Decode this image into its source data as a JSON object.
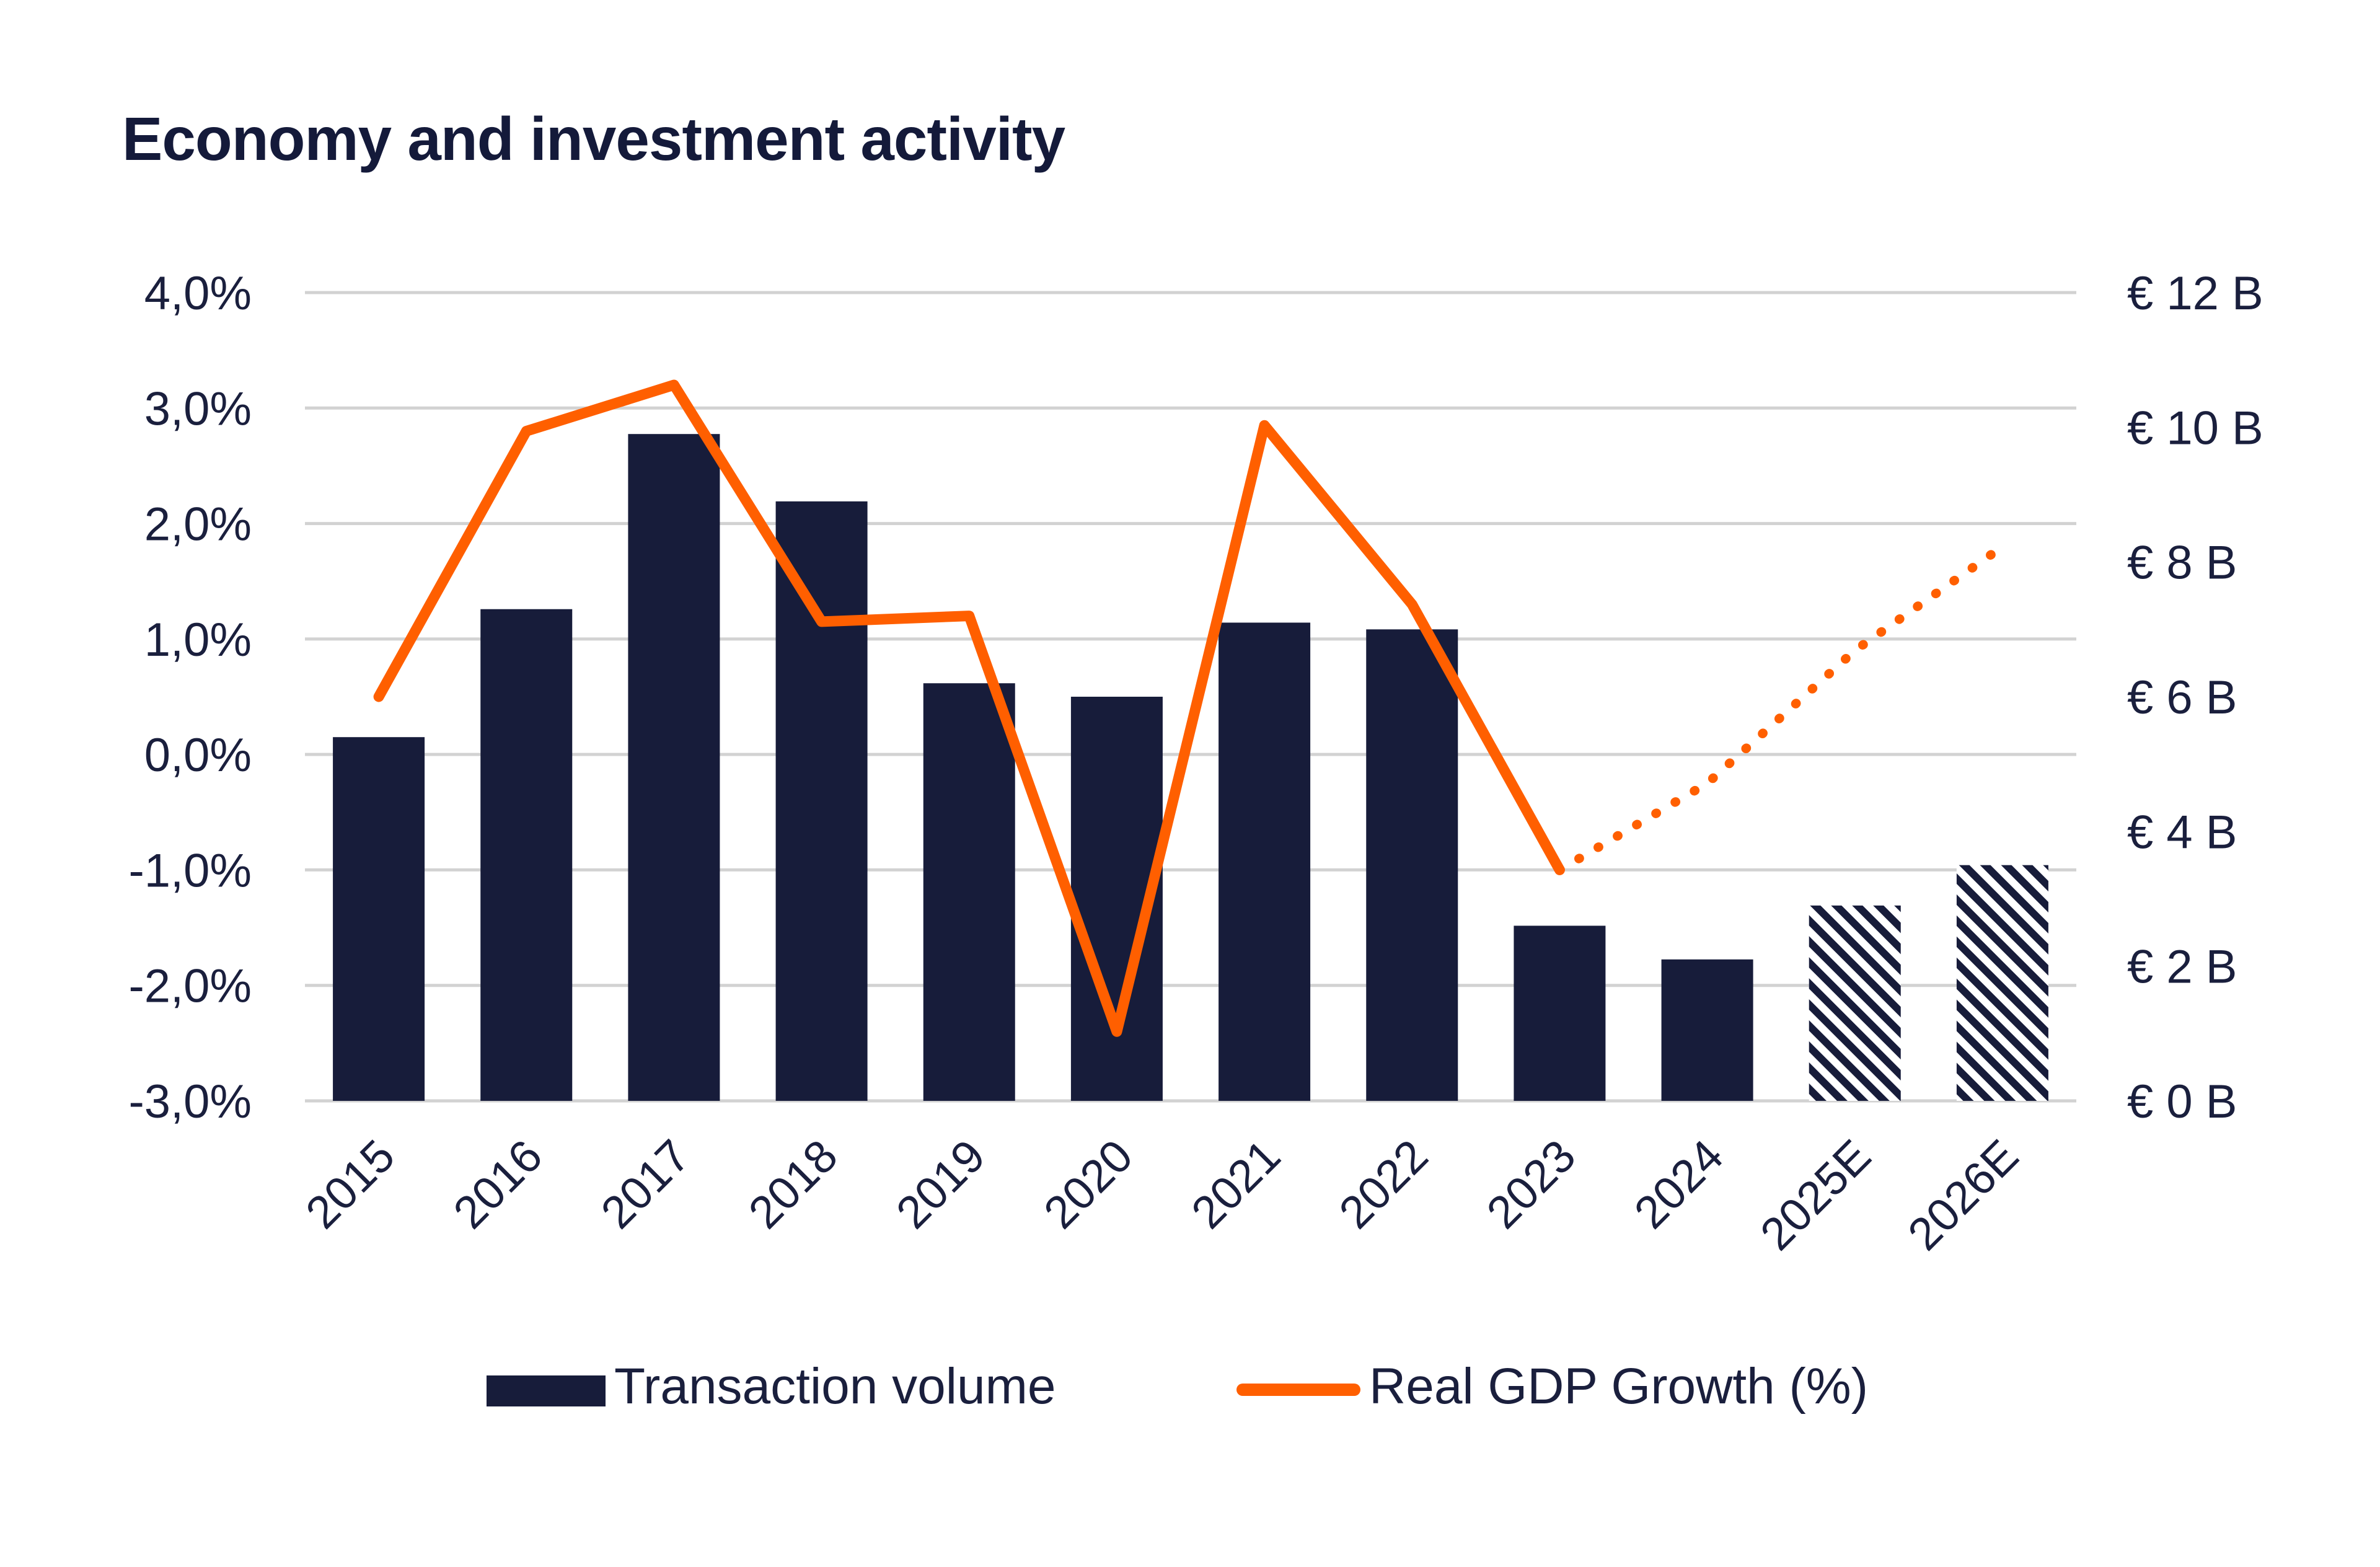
{
  "chart_data": {
    "type": "bar",
    "title": "Economy and investment activity",
    "categories": [
      "2015",
      "2016",
      "2017",
      "2018",
      "2019",
      "2020",
      "2021",
      "2022",
      "2023",
      "2024",
      "2025E",
      "2026E"
    ],
    "series": [
      {
        "name": "Transaction volume",
        "type": "bar",
        "axis": "right",
        "unit": "€ B",
        "values": [
          5.4,
          7.3,
          9.9,
          8.9,
          6.2,
          6.0,
          7.1,
          7.0,
          2.6,
          2.1,
          2.9,
          3.5
        ],
        "forecast_from_index": 10,
        "color": "#171c3a",
        "forecast_style": "hatched"
      },
      {
        "name": "Real GDP Growth (%)",
        "type": "line",
        "axis": "left",
        "unit": "%",
        "values": [
          0.5,
          2.8,
          3.2,
          1.15,
          1.2,
          -2.4,
          2.85,
          1.3,
          -1.0,
          -0.25,
          0.9,
          1.8
        ],
        "forecast_from_index": 8,
        "color": "#ff5f00",
        "forecast_style": "dotted"
      }
    ],
    "y_left": {
      "label": "",
      "range": [
        -3.0,
        4.0
      ],
      "ticks": [
        4.0,
        3.0,
        2.0,
        1.0,
        0.0,
        -1.0,
        -2.0,
        -3.0
      ],
      "tick_labels": [
        "4,0%",
        "3,0%",
        "2,0%",
        "1,0%",
        "0,0%",
        "-1,0%",
        "-2,0%",
        "-3,0%"
      ]
    },
    "y_right": {
      "label": "",
      "range": [
        0,
        12
      ],
      "ticks": [
        12,
        10,
        8,
        6,
        4,
        2,
        0
      ],
      "tick_labels": [
        "€ 12 B",
        "€ 10 B",
        "€ 8 B",
        "€ 6 B",
        "€ 4 B",
        "€ 2 B",
        "€ 0 B"
      ]
    },
    "xlabel": "",
    "grid": true,
    "legend_position": "bottom",
    "legend": [
      "Transaction volume",
      "Real GDP Growth (%)"
    ]
  },
  "colors": {
    "bar": "#171c3a",
    "line": "#ff5f00",
    "grid": "#d2d2d2",
    "text": "#1a1f3d"
  }
}
